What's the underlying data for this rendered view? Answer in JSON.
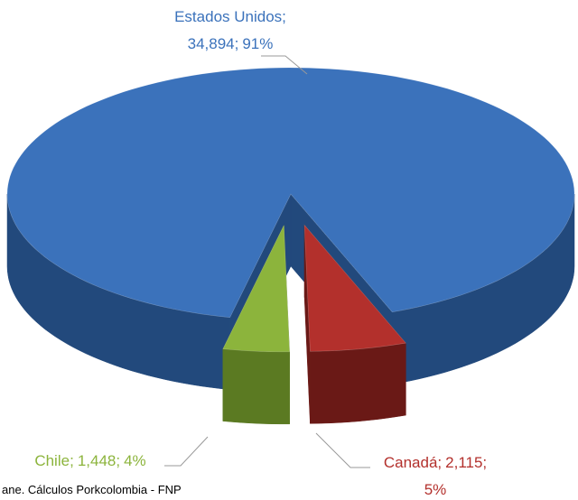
{
  "chart_data": {
    "type": "pie3d",
    "categories": [
      "Estados Unidos",
      "Canadá",
      "Chile"
    ],
    "values": [
      34894,
      2115,
      1448
    ],
    "value_labels": [
      "34,894",
      "2,115",
      "1,448"
    ],
    "percents": [
      91,
      5,
      4
    ],
    "percent_labels": [
      "91%",
      "5%",
      "4%"
    ],
    "separator": ";",
    "colors": [
      "#3b72bb",
      "#b3302c",
      "#8cb43c"
    ],
    "side_colors": [
      "#22497c",
      "#6a1916",
      "#5b7a22"
    ],
    "exploded": [
      false,
      true,
      true
    ],
    "source": "ane. Cálculos Porkcolombia - FNP"
  }
}
